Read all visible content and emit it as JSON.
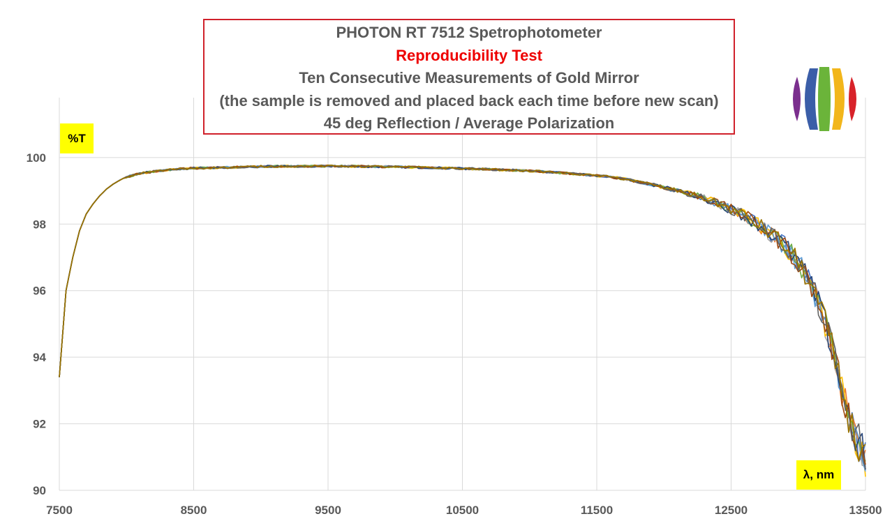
{
  "title_box": {
    "line1": "PHOTON RT 7512 Spetrophotometer",
    "line2": "Reproducibility Test",
    "line3": "Ten Consecutive Measurements of Gold Mirror",
    "line4": "(the sample is removed and placed back each time before new scan)",
    "line5": "45 deg Reflection / Average Polarization"
  },
  "axis_tags": {
    "y": "%T",
    "x": "λ, nm"
  },
  "colors": {
    "title_border": "#d0202a",
    "subtitle": "#ee0000",
    "axis_tag_bg": "#ffff00",
    "grid": "#d9d9d9",
    "logo_bands": [
      "#7b2f8e",
      "#3b5ea8",
      "#6bb43a",
      "#f2b61b",
      "#d8232a"
    ]
  },
  "chart_data": {
    "type": "line",
    "title": "PHOTON RT 7512 Spetrophotometer",
    "subtitle": "Reproducibility Test",
    "xlabel": "λ, nm",
    "ylabel": "%T",
    "xlim": [
      7500,
      13500
    ],
    "ylim": [
      90,
      101.8
    ],
    "x_ticks": [
      7500,
      8500,
      9500,
      10500,
      11500,
      12500,
      13500
    ],
    "y_ticks": [
      90,
      92,
      94,
      96,
      98,
      100
    ],
    "grid": true,
    "legend": "none",
    "series_colors": [
      "#4472c4",
      "#ed7d31",
      "#a5a5a5",
      "#ffc000",
      "#5b9bd5",
      "#70ad47",
      "#264478",
      "#9e480e",
      "#636363",
      "#997300"
    ],
    "x": [
      7500,
      7550,
      7600,
      7650,
      7700,
      7750,
      7800,
      7850,
      7900,
      7950,
      8000,
      8100,
      8200,
      8300,
      8400,
      8500,
      8600,
      8700,
      8800,
      8900,
      9000,
      9200,
      9400,
      9600,
      9800,
      10000,
      10200,
      10400,
      10600,
      10800,
      11000,
      11200,
      11400,
      11600,
      11700,
      11800,
      11900,
      12000,
      12100,
      12200,
      12300,
      12400,
      12500,
      12600,
      12700,
      12800,
      12900,
      13000,
      13050,
      13100,
      13150,
      13200,
      13250,
      13300,
      13350,
      13400,
      13450,
      13500
    ],
    "y": [
      93.4,
      96.0,
      97.0,
      97.8,
      98.3,
      98.6,
      98.85,
      99.05,
      99.2,
      99.32,
      99.42,
      99.52,
      99.58,
      99.63,
      99.66,
      99.68,
      99.69,
      99.7,
      99.71,
      99.72,
      99.73,
      99.74,
      99.74,
      99.74,
      99.73,
      99.72,
      99.7,
      99.68,
      99.66,
      99.63,
      99.6,
      99.55,
      99.49,
      99.42,
      99.36,
      99.28,
      99.2,
      99.1,
      99.0,
      98.9,
      98.78,
      98.62,
      98.45,
      98.25,
      98.0,
      97.7,
      97.35,
      96.85,
      96.5,
      96.1,
      95.6,
      95.0,
      94.3,
      93.4,
      92.6,
      91.9,
      91.3,
      90.9
    ],
    "series_count": 10
  }
}
